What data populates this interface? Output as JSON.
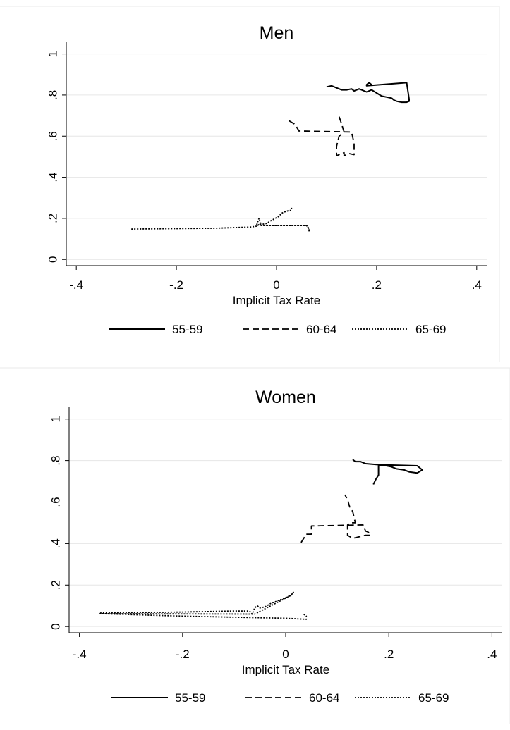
{
  "chart_data": [
    {
      "type": "line",
      "title": "Men",
      "xlabel": "Implicit Tax Rate",
      "ylabel": "",
      "xlim": [
        -0.42,
        0.42
      ],
      "ylim": [
        -0.03,
        1.05
      ],
      "xticks": [
        -0.4,
        -0.2,
        0,
        0.2,
        0.4
      ],
      "xtick_labels": [
        "-.4",
        "-.2",
        "0",
        ".2",
        ".4"
      ],
      "yticks": [
        0,
        0.2,
        0.4,
        0.6,
        0.8,
        1
      ],
      "ytick_labels": [
        "0",
        ".2",
        ".4",
        ".6",
        ".8",
        "1"
      ],
      "grid": "horizontal",
      "legend_position": "bottom",
      "series": [
        {
          "name": "55-59",
          "style": "solid",
          "points": [
            [
              0.1,
              0.84
            ],
            [
              0.11,
              0.845
            ],
            [
              0.12,
              0.835
            ],
            [
              0.13,
              0.825
            ],
            [
              0.14,
              0.825
            ],
            [
              0.15,
              0.83
            ],
            [
              0.155,
              0.82
            ],
            [
              0.165,
              0.83
            ],
            [
              0.17,
              0.825
            ],
            [
              0.18,
              0.815
            ],
            [
              0.19,
              0.825
            ],
            [
              0.2,
              0.81
            ],
            [
              0.21,
              0.795
            ],
            [
              0.22,
              0.79
            ],
            [
              0.23,
              0.785
            ],
            [
              0.235,
              0.775
            ],
            [
              0.24,
              0.77
            ],
            [
              0.25,
              0.765
            ],
            [
              0.26,
              0.765
            ],
            [
              0.265,
              0.77
            ],
            [
              0.265,
              0.78
            ],
            [
              0.26,
              0.86
            ],
            [
              0.18,
              0.845
            ],
            [
              0.18,
              0.85
            ],
            [
              0.185,
              0.86
            ],
            [
              0.19,
              0.85
            ]
          ]
        },
        {
          "name": "60-64",
          "style": "dashed",
          "points": [
            [
              0.025,
              0.675
            ],
            [
              0.035,
              0.66
            ],
            [
              0.04,
              0.645
            ],
            [
              0.045,
              0.625
            ],
            [
              0.05,
              0.625
            ],
            [
              0.15,
              0.62
            ],
            [
              0.155,
              0.565
            ],
            [
              0.155,
              0.51
            ],
            [
              0.145,
              0.515
            ],
            [
              0.135,
              0.505
            ],
            [
              0.135,
              0.52
            ],
            [
              0.12,
              0.505
            ],
            [
              0.12,
              0.55
            ],
            [
              0.125,
              0.6
            ],
            [
              0.135,
              0.62
            ],
            [
              0.13,
              0.66
            ],
            [
              0.125,
              0.695
            ]
          ]
        },
        {
          "name": "65-69",
          "style": "dotted",
          "points": [
            [
              -0.29,
              0.148
            ],
            [
              -0.21,
              0.15
            ],
            [
              -0.12,
              0.152
            ],
            [
              -0.05,
              0.158
            ],
            [
              -0.04,
              0.162
            ],
            [
              -0.035,
              0.17
            ],
            [
              -0.03,
              0.165
            ],
            [
              0.06,
              0.165
            ],
            [
              0.065,
              0.15
            ],
            [
              0.065,
              0.135
            ],
            [
              0.065,
              0.15
            ],
            [
              0.06,
              0.165
            ],
            [
              -0.03,
              0.165
            ],
            [
              -0.035,
              0.2
            ],
            [
              -0.04,
              0.165
            ],
            [
              -0.02,
              0.175
            ],
            [
              -0.01,
              0.19
            ],
            [
              0.005,
              0.21
            ],
            [
              0.01,
              0.225
            ],
            [
              0.02,
              0.235
            ],
            [
              0.03,
              0.24
            ],
            [
              0.03,
              0.255
            ]
          ]
        }
      ]
    },
    {
      "type": "line",
      "title": "Women",
      "xlabel": "Implicit Tax Rate",
      "ylabel": "",
      "xlim": [
        -0.42,
        0.42
      ],
      "ylim": [
        -0.03,
        1.05
      ],
      "xticks": [
        -0.4,
        -0.2,
        0,
        0.2,
        0.4
      ],
      "xtick_labels": [
        "-.4",
        "-.2",
        "0",
        ".2",
        ".4"
      ],
      "yticks": [
        0,
        0.2,
        0.4,
        0.6,
        0.8,
        1
      ],
      "ytick_labels": [
        "0",
        ".2",
        ".4",
        ".6",
        ".8",
        "1"
      ],
      "grid": "horizontal",
      "legend_position": "bottom",
      "series": [
        {
          "name": "55-59",
          "style": "solid",
          "points": [
            [
              0.13,
              0.805
            ],
            [
              0.135,
              0.795
            ],
            [
              0.145,
              0.795
            ],
            [
              0.155,
              0.785
            ],
            [
              0.18,
              0.78
            ],
            [
              0.255,
              0.775
            ],
            [
              0.265,
              0.755
            ],
            [
              0.255,
              0.74
            ],
            [
              0.24,
              0.745
            ],
            [
              0.23,
              0.755
            ],
            [
              0.215,
              0.76
            ],
            [
              0.205,
              0.77
            ],
            [
              0.195,
              0.775
            ],
            [
              0.18,
              0.775
            ],
            [
              0.18,
              0.765
            ],
            [
              0.18,
              0.73
            ],
            [
              0.175,
              0.71
            ],
            [
              0.17,
              0.685
            ]
          ]
        },
        {
          "name": "60-64",
          "style": "dashed",
          "points": [
            [
              0.03,
              0.405
            ],
            [
              0.035,
              0.425
            ],
            [
              0.04,
              0.445
            ],
            [
              0.045,
              0.445
            ],
            [
              0.05,
              0.445
            ],
            [
              0.05,
              0.485
            ],
            [
              0.15,
              0.49
            ],
            [
              0.155,
              0.46
            ],
            [
              0.16,
              0.455
            ],
            [
              0.165,
              0.44
            ],
            [
              0.155,
              0.44
            ],
            [
              0.13,
              0.425
            ],
            [
              0.12,
              0.44
            ],
            [
              0.12,
              0.49
            ],
            [
              0.125,
              0.5
            ],
            [
              0.135,
              0.5
            ],
            [
              0.13,
              0.555
            ],
            [
              0.125,
              0.57
            ],
            [
              0.12,
              0.61
            ],
            [
              0.115,
              0.635
            ]
          ]
        },
        {
          "name": "65-69",
          "style": "dotted",
          "points": [
            [
              -0.36,
              0.065
            ],
            [
              -0.2,
              0.07
            ],
            [
              -0.1,
              0.075
            ],
            [
              -0.07,
              0.075
            ],
            [
              -0.065,
              0.06
            ],
            [
              -0.06,
              0.09
            ],
            [
              -0.055,
              0.1
            ],
            [
              -0.05,
              0.09
            ],
            [
              -0.04,
              0.095
            ],
            [
              -0.03,
              0.11
            ],
            [
              -0.02,
              0.12
            ],
            [
              -0.01,
              0.13
            ],
            [
              0.0,
              0.14
            ],
            [
              0.01,
              0.15
            ],
            [
              0.015,
              0.165
            ],
            [
              0.01,
              0.15
            ],
            [
              -0.06,
              0.06
            ],
            [
              -0.36,
              0.062
            ],
            [
              -0.2,
              0.05
            ],
            [
              0.0,
              0.04
            ],
            [
              0.04,
              0.035
            ],
            [
              0.04,
              0.05
            ],
            [
              0.035,
              0.06
            ]
          ]
        }
      ]
    }
  ]
}
